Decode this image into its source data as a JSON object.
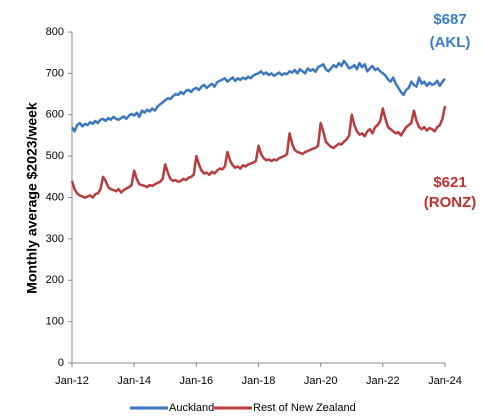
{
  "chart_data": {
    "type": "line",
    "ylabel": "Monthly average $2023/week",
    "annotations": [
      {
        "lines": [
          "$687",
          "(AKL)"
        ],
        "color": "#3a7dc9"
      },
      {
        "lines": [
          "$621",
          "(RONZ)"
        ],
        "color": "#c0302b"
      }
    ],
    "categories": [
      "Jan-12",
      null,
      null,
      null,
      null,
      null,
      null,
      null,
      null,
      null,
      null,
      null,
      null,
      null,
      null,
      null,
      null,
      null,
      null,
      null,
      null,
      null,
      null,
      null,
      "Jan-14",
      null,
      null,
      null,
      null,
      null,
      null,
      null,
      null,
      null,
      null,
      null,
      null,
      null,
      null,
      null,
      null,
      null,
      null,
      null,
      null,
      null,
      null,
      null,
      "Jan-16",
      null,
      null,
      null,
      null,
      null,
      null,
      null,
      null,
      null,
      null,
      null,
      null,
      null,
      null,
      null,
      null,
      null,
      null,
      null,
      null,
      null,
      null,
      null,
      "Jan-18",
      null,
      null,
      null,
      null,
      null,
      null,
      null,
      null,
      null,
      null,
      null,
      null,
      null,
      null,
      null,
      null,
      null,
      null,
      null,
      null,
      null,
      null,
      null,
      "Jan-20",
      null,
      null,
      null,
      null,
      null,
      null,
      null,
      null,
      null,
      null,
      null,
      null,
      null,
      null,
      null,
      null,
      null,
      null,
      null,
      null,
      null,
      null,
      null,
      "Jan-22",
      null,
      null,
      null,
      null,
      null,
      null,
      null,
      null,
      null,
      null,
      null,
      null,
      null,
      null,
      null,
      null,
      null,
      null,
      null,
      null,
      null,
      null,
      null,
      "Jan-24"
    ],
    "series": [
      {
        "name": "Auckland",
        "color": "#3c78bf",
        "values": [
          570,
          560,
          575,
          580,
          572,
          578,
          575,
          582,
          578,
          585,
          580,
          588,
          590,
          585,
          592,
          588,
          595,
          590,
          588,
          592,
          596,
          590,
          598,
          602,
          598,
          605,
          595,
          610,
          605,
          612,
          608,
          615,
          610,
          620,
          625,
          630,
          635,
          640,
          638,
          645,
          650,
          648,
          655,
          650,
          658,
          660,
          655,
          662,
          665,
          660,
          668,
          672,
          665,
          670,
          675,
          668,
          678,
          682,
          685,
          688,
          680,
          685,
          690,
          682,
          688,
          684,
          690,
          686,
          692,
          688,
          695,
          698,
          700,
          705,
          698,
          702,
          696,
          700,
          694,
          698,
          702,
          696,
          700,
          698,
          705,
          702,
          708,
          700,
          710,
          705,
          700,
          712,
          706,
          710,
          704,
          715,
          718,
          722,
          710,
          705,
          712,
          720,
          715,
          725,
          718,
          730,
          722,
          712,
          715,
          720,
          710,
          725,
          715,
          722,
          705,
          712,
          718,
          708,
          712,
          705,
          700,
          695,
          685,
          680,
          690,
          675,
          665,
          655,
          648,
          660,
          665,
          680,
          672,
          668,
          690,
          675,
          680,
          670,
          678,
          672,
          675,
          682,
          670,
          680,
          687
        ]
      },
      {
        "name": "Rest of New Zealand",
        "color": "#b83c3c",
        "values": [
          440,
          420,
          410,
          405,
          402,
          400,
          402,
          405,
          400,
          408,
          410,
          420,
          450,
          440,
          425,
          420,
          418,
          415,
          420,
          412,
          418,
          422,
          425,
          430,
          465,
          445,
          432,
          430,
          428,
          425,
          430,
          428,
          432,
          435,
          438,
          445,
          480,
          460,
          445,
          440,
          442,
          438,
          440,
          445,
          442,
          448,
          450,
          455,
          500,
          480,
          465,
          458,
          460,
          455,
          462,
          458,
          465,
          470,
          468,
          475,
          510,
          490,
          478,
          472,
          475,
          470,
          478,
          475,
          480,
          482,
          485,
          488,
          525,
          505,
          495,
          490,
          492,
          488,
          492,
          490,
          495,
          498,
          500,
          505,
          555,
          530,
          515,
          510,
          508,
          505,
          510,
          512,
          515,
          518,
          520,
          525,
          580,
          560,
          535,
          528,
          522,
          520,
          525,
          530,
          528,
          535,
          540,
          550,
          600,
          575,
          560,
          552,
          555,
          548,
          560,
          565,
          555,
          570,
          575,
          585,
          615,
          590,
          570,
          565,
          560,
          555,
          558,
          550,
          560,
          570,
          575,
          580,
          610,
          585,
          570,
          565,
          570,
          562,
          568,
          565,
          560,
          570,
          575,
          590,
          621
        ]
      }
    ],
    "ylim": [
      0,
      800
    ],
    "yticks": [
      0,
      100,
      200,
      300,
      400,
      500,
      600,
      700,
      800
    ],
    "grid": false,
    "legend": "bottom"
  }
}
